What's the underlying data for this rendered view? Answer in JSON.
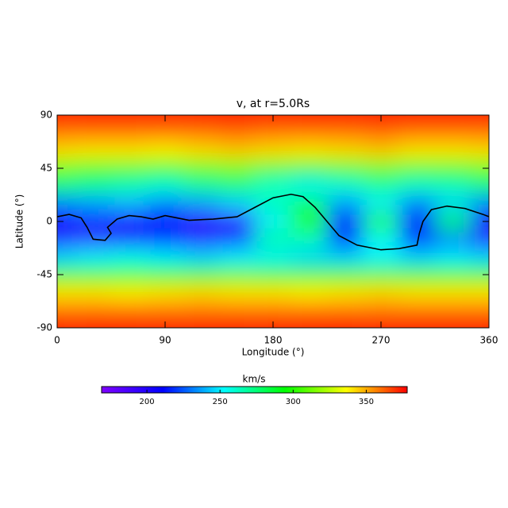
{
  "chart_data": {
    "type": "heatmap",
    "title": "v, at r=5.0Rs",
    "x_label": "Longitude (°)",
    "y_label": "Latitude (°)",
    "x": [
      0,
      30,
      60,
      90,
      120,
      150,
      180,
      210,
      240,
      270,
      300,
      330,
      360
    ],
    "y": [
      90,
      75,
      60,
      45,
      30,
      15,
      0,
      -15,
      -30,
      -45,
      -60,
      -75,
      -90
    ],
    "z": [
      [
        375,
        375,
        375,
        375,
        375,
        375,
        375,
        375,
        375,
        375,
        375,
        375,
        375
      ],
      [
        360,
        360,
        360,
        360,
        360,
        362,
        360,
        360,
        360,
        362,
        360,
        360,
        360
      ],
      [
        342,
        340,
        340,
        338,
        342,
        345,
        342,
        340,
        342,
        345,
        340,
        340,
        342
      ],
      [
        310,
        305,
        305,
        300,
        308,
        312,
        305,
        300,
        305,
        310,
        305,
        305,
        310
      ],
      [
        275,
        270,
        265,
        260,
        270,
        275,
        260,
        250,
        260,
        270,
        262,
        265,
        275
      ],
      [
        230,
        235,
        240,
        230,
        235,
        245,
        265,
        280,
        235,
        250,
        230,
        245,
        230
      ],
      [
        205,
        220,
        200,
        215,
        195,
        195,
        250,
        300,
        215,
        300,
        215,
        290,
        205
      ],
      [
        200,
        195,
        205,
        210,
        200,
        220,
        270,
        265,
        210,
        255,
        210,
        230,
        200
      ],
      [
        245,
        250,
        255,
        250,
        245,
        250,
        250,
        245,
        245,
        250,
        245,
        250,
        245
      ],
      [
        300,
        300,
        300,
        295,
        300,
        305,
        300,
        300,
        300,
        305,
        300,
        300,
        300
      ],
      [
        340,
        340,
        338,
        340,
        342,
        340,
        340,
        338,
        340,
        342,
        340,
        340,
        340
      ],
      [
        360,
        360,
        360,
        360,
        360,
        360,
        360,
        360,
        360,
        360,
        360,
        360,
        360
      ],
      [
        375,
        375,
        375,
        375,
        375,
        375,
        375,
        375,
        375,
        375,
        375,
        375,
        375
      ]
    ],
    "xlim": [
      0,
      360
    ],
    "xticks": [
      0,
      90,
      180,
      270,
      360
    ],
    "ylim": [
      -90,
      90
    ],
    "yticks": [
      -90,
      -45,
      0,
      45,
      90
    ],
    "colorbar_label": "km/s",
    "clim": [
      169,
      378
    ],
    "cticks": [
      200,
      250,
      300,
      350
    ],
    "colormap": [
      "#7f00ff",
      "#0000ff",
      "#00ffff",
      "#00ff00",
      "#ffff00",
      "#ff0000"
    ],
    "line": {
      "color": "#000000",
      "x": [
        0,
        10,
        20,
        25,
        30,
        40,
        45,
        42,
        50,
        60,
        70,
        80,
        90,
        100,
        110,
        130,
        150,
        165,
        180,
        195,
        205,
        215,
        225,
        235,
        250,
        270,
        285,
        300,
        302,
        305,
        312,
        325,
        340,
        355,
        360
      ],
      "y": [
        4,
        6,
        3,
        -5,
        -15,
        -16,
        -10,
        -5,
        2,
        5,
        4,
        2,
        5,
        3,
        1,
        2,
        4,
        12,
        20,
        23,
        21,
        12,
        0,
        -12,
        -20,
        -24,
        -23,
        -20,
        -10,
        0,
        10,
        13,
        11,
        6,
        4
      ]
    }
  }
}
